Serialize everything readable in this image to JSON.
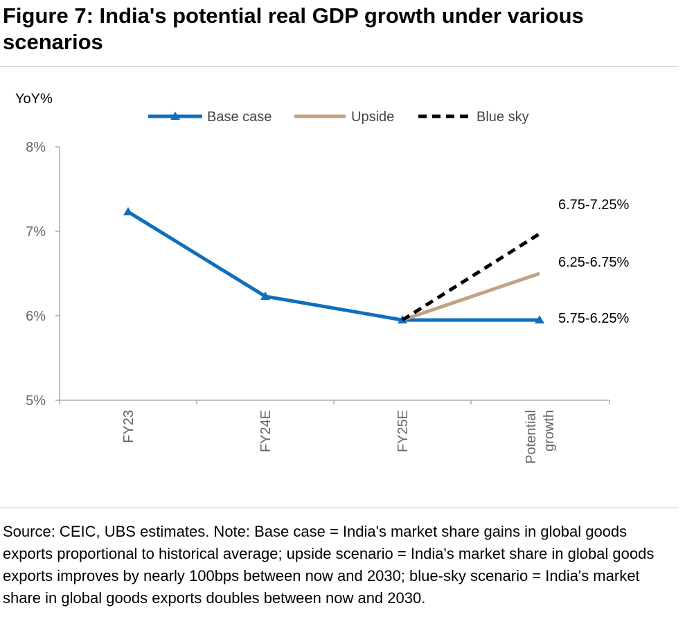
{
  "figure": {
    "title": "Figure 7: India's potential real GDP growth under various scenarios",
    "note": "Source: CEIC, UBS estimates. Note: Base case = India's market share gains in global goods exports proportional to historical average; upside scenario = India's market share in global goods exports improves by nearly 100bps between now and 2030; blue-sky scenario = India's market share in global goods exports doubles between now and 2030."
  },
  "chart_data": {
    "type": "line",
    "ylabel": "YoY%",
    "ylim": [
      5,
      8
    ],
    "yticks": [
      5,
      6,
      7,
      8
    ],
    "ytick_labels": [
      "5%",
      "6%",
      "7%",
      "8%"
    ],
    "categories": [
      "FY23",
      "FY24E",
      "FY25E",
      "Potential growth"
    ],
    "category_lines": [
      [
        "FY23"
      ],
      [
        "FY24E"
      ],
      [
        "FY25E"
      ],
      [
        "Potential",
        "growth"
      ]
    ],
    "grid": false,
    "legend_position": "top",
    "series": [
      {
        "name": "Base case",
        "color": "#0E6FC0",
        "style": "solid-triangle",
        "values": [
          7.23,
          6.23,
          5.95,
          5.95
        ]
      },
      {
        "name": "Upside",
        "color": "#C2A283",
        "style": "solid",
        "values": [
          null,
          null,
          5.95,
          6.5
        ]
      },
      {
        "name": "Blue sky",
        "color": "#000000",
        "style": "dashed",
        "values": [
          null,
          null,
          5.95,
          6.97
        ]
      }
    ],
    "annotations": [
      {
        "text": "6.75-7.25%",
        "series": "Blue sky"
      },
      {
        "text": "6.25-6.75%",
        "series": "Upside"
      },
      {
        "text": "5.75-6.25%",
        "series": "Base case"
      }
    ]
  }
}
